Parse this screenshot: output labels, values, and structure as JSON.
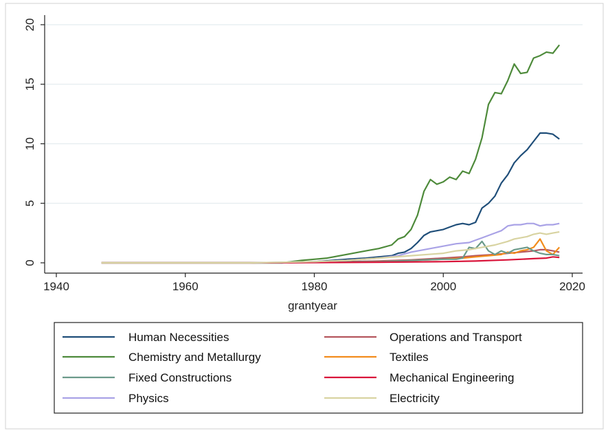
{
  "chart_data": {
    "type": "line",
    "xlabel": "grantyear",
    "ylabel": "",
    "xlim": [
      1940,
      2020
    ],
    "ylim": [
      0,
      20
    ],
    "x_ticks": [
      1940,
      1960,
      1980,
      2000,
      2020
    ],
    "y_ticks": [
      0,
      5,
      10,
      15,
      20
    ],
    "grid": "horizontal",
    "legend_placement": "bottom",
    "series": [
      {
        "name": "Human Necessities",
        "color": "#1f4e79",
        "x": [
          1947,
          1950,
          1955,
          1960,
          1965,
          1970,
          1975,
          1980,
          1985,
          1988,
          1990,
          1992,
          1993,
          1994,
          1995,
          1996,
          1997,
          1998,
          1999,
          2000,
          2001,
          2002,
          2003,
          2004,
          2005,
          2006,
          2007,
          2008,
          2009,
          2010,
          2011,
          2012,
          2013,
          2014,
          2015,
          2016,
          2017,
          2018
        ],
        "y": [
          0,
          0,
          0,
          0,
          0,
          0,
          0,
          0.1,
          0.3,
          0.4,
          0.5,
          0.6,
          0.8,
          0.9,
          1.2,
          1.7,
          2.3,
          2.6,
          2.7,
          2.8,
          3.0,
          3.2,
          3.3,
          3.2,
          3.4,
          4.6,
          5.0,
          5.6,
          6.7,
          7.4,
          8.4,
          9.0,
          9.5,
          10.2,
          10.9,
          10.9,
          10.8,
          10.4
        ]
      },
      {
        "name": "Operations and Transport",
        "color": "#b5565e",
        "x": [
          1947,
          1950,
          1960,
          1970,
          1975,
          1980,
          1985,
          1990,
          1995,
          2000,
          2003,
          2005,
          2008,
          2010,
          2012,
          2014,
          2015,
          2016,
          2017,
          2018
        ],
        "y": [
          0,
          0,
          0,
          0,
          0,
          0.05,
          0.1,
          0.15,
          0.25,
          0.4,
          0.5,
          0.6,
          0.7,
          0.8,
          0.9,
          1.0,
          1.1,
          1.1,
          1.0,
          0.9
        ]
      },
      {
        "name": "Chemistry and Metallurgy",
        "color": "#4d8a3a",
        "x": [
          1947,
          1950,
          1955,
          1960,
          1965,
          1970,
          1975,
          1978,
          1980,
          1982,
          1984,
          1986,
          1988,
          1990,
          1992,
          1993,
          1994,
          1995,
          1996,
          1997,
          1998,
          1999,
          2000,
          2001,
          2002,
          2003,
          2004,
          2005,
          2006,
          2007,
          2008,
          2009,
          2010,
          2011,
          2012,
          2013,
          2014,
          2015,
          2016,
          2017,
          2018
        ],
        "y": [
          0,
          0,
          0,
          0,
          0,
          0,
          0,
          0.2,
          0.3,
          0.4,
          0.6,
          0.8,
          1.0,
          1.2,
          1.5,
          2.0,
          2.2,
          2.8,
          4.0,
          6.0,
          7.0,
          6.6,
          6.8,
          7.2,
          7.0,
          7.7,
          7.5,
          8.7,
          10.5,
          13.3,
          14.3,
          14.2,
          15.3,
          16.7,
          15.9,
          16.0,
          17.2,
          17.4,
          17.7,
          17.6,
          18.3
        ]
      },
      {
        "name": "Textiles",
        "color": "#f28c1b",
        "x": [
          1947,
          1960,
          1970,
          1980,
          1990,
          1995,
          2000,
          2003,
          2005,
          2007,
          2009,
          2010,
          2011,
          2012,
          2013,
          2014,
          2015,
          2016,
          2017,
          2018
        ],
        "y": [
          0,
          0,
          0,
          0.05,
          0.1,
          0.2,
          0.3,
          0.4,
          0.5,
          0.6,
          0.7,
          0.9,
          0.8,
          1.0,
          1.1,
          1.3,
          2.0,
          1.0,
          0.7,
          1.3
        ]
      },
      {
        "name": "Fixed Constructions",
        "color": "#6b9a8a",
        "x": [
          1947,
          1960,
          1970,
          1980,
          1990,
          1995,
          2000,
          2002,
          2003,
          2004,
          2005,
          2006,
          2007,
          2008,
          2009,
          2010,
          2011,
          2012,
          2013,
          2014,
          2015,
          2016,
          2017,
          2018
        ],
        "y": [
          0,
          0,
          0,
          0.05,
          0.1,
          0.2,
          0.3,
          0.3,
          0.4,
          1.3,
          1.2,
          1.8,
          1.0,
          0.7,
          1.0,
          0.8,
          1.1,
          1.2,
          1.3,
          1.0,
          0.8,
          0.7,
          0.7,
          0.6
        ]
      },
      {
        "name": "Mechanical Engineering",
        "color": "#d9143a",
        "x": [
          1947,
          1960,
          1970,
          1980,
          1990,
          2000,
          2005,
          2010,
          2012,
          2014,
          2016,
          2017,
          2018
        ],
        "y": [
          0,
          0,
          0,
          0.02,
          0.05,
          0.1,
          0.15,
          0.25,
          0.3,
          0.35,
          0.4,
          0.5,
          0.45
        ]
      },
      {
        "name": "Physics",
        "color": "#a9a2e6",
        "x": [
          1947,
          1960,
          1970,
          1980,
          1985,
          1990,
          1993,
          1995,
          1997,
          1999,
          2000,
          2002,
          2004,
          2005,
          2006,
          2007,
          2008,
          2009,
          2010,
          2011,
          2012,
          2013,
          2014,
          2015,
          2016,
          2017,
          2018
        ],
        "y": [
          0,
          0,
          0,
          0.1,
          0.2,
          0.4,
          0.6,
          0.9,
          1.1,
          1.3,
          1.4,
          1.6,
          1.7,
          1.9,
          2.1,
          2.3,
          2.5,
          2.7,
          3.1,
          3.2,
          3.2,
          3.3,
          3.3,
          3.1,
          3.2,
          3.2,
          3.3
        ]
      },
      {
        "name": "Electricity",
        "color": "#d8d3a1",
        "x": [
          1947,
          1960,
          1970,
          1980,
          1985,
          1990,
          1995,
          2000,
          2002,
          2004,
          2006,
          2008,
          2010,
          2011,
          2012,
          2013,
          2014,
          2015,
          2016,
          2017,
          2018
        ],
        "y": [
          0,
          0,
          0,
          0.1,
          0.2,
          0.4,
          0.6,
          0.8,
          1.0,
          1.1,
          1.3,
          1.5,
          1.8,
          2.0,
          2.1,
          2.2,
          2.4,
          2.5,
          2.4,
          2.5,
          2.6
        ]
      }
    ]
  }
}
